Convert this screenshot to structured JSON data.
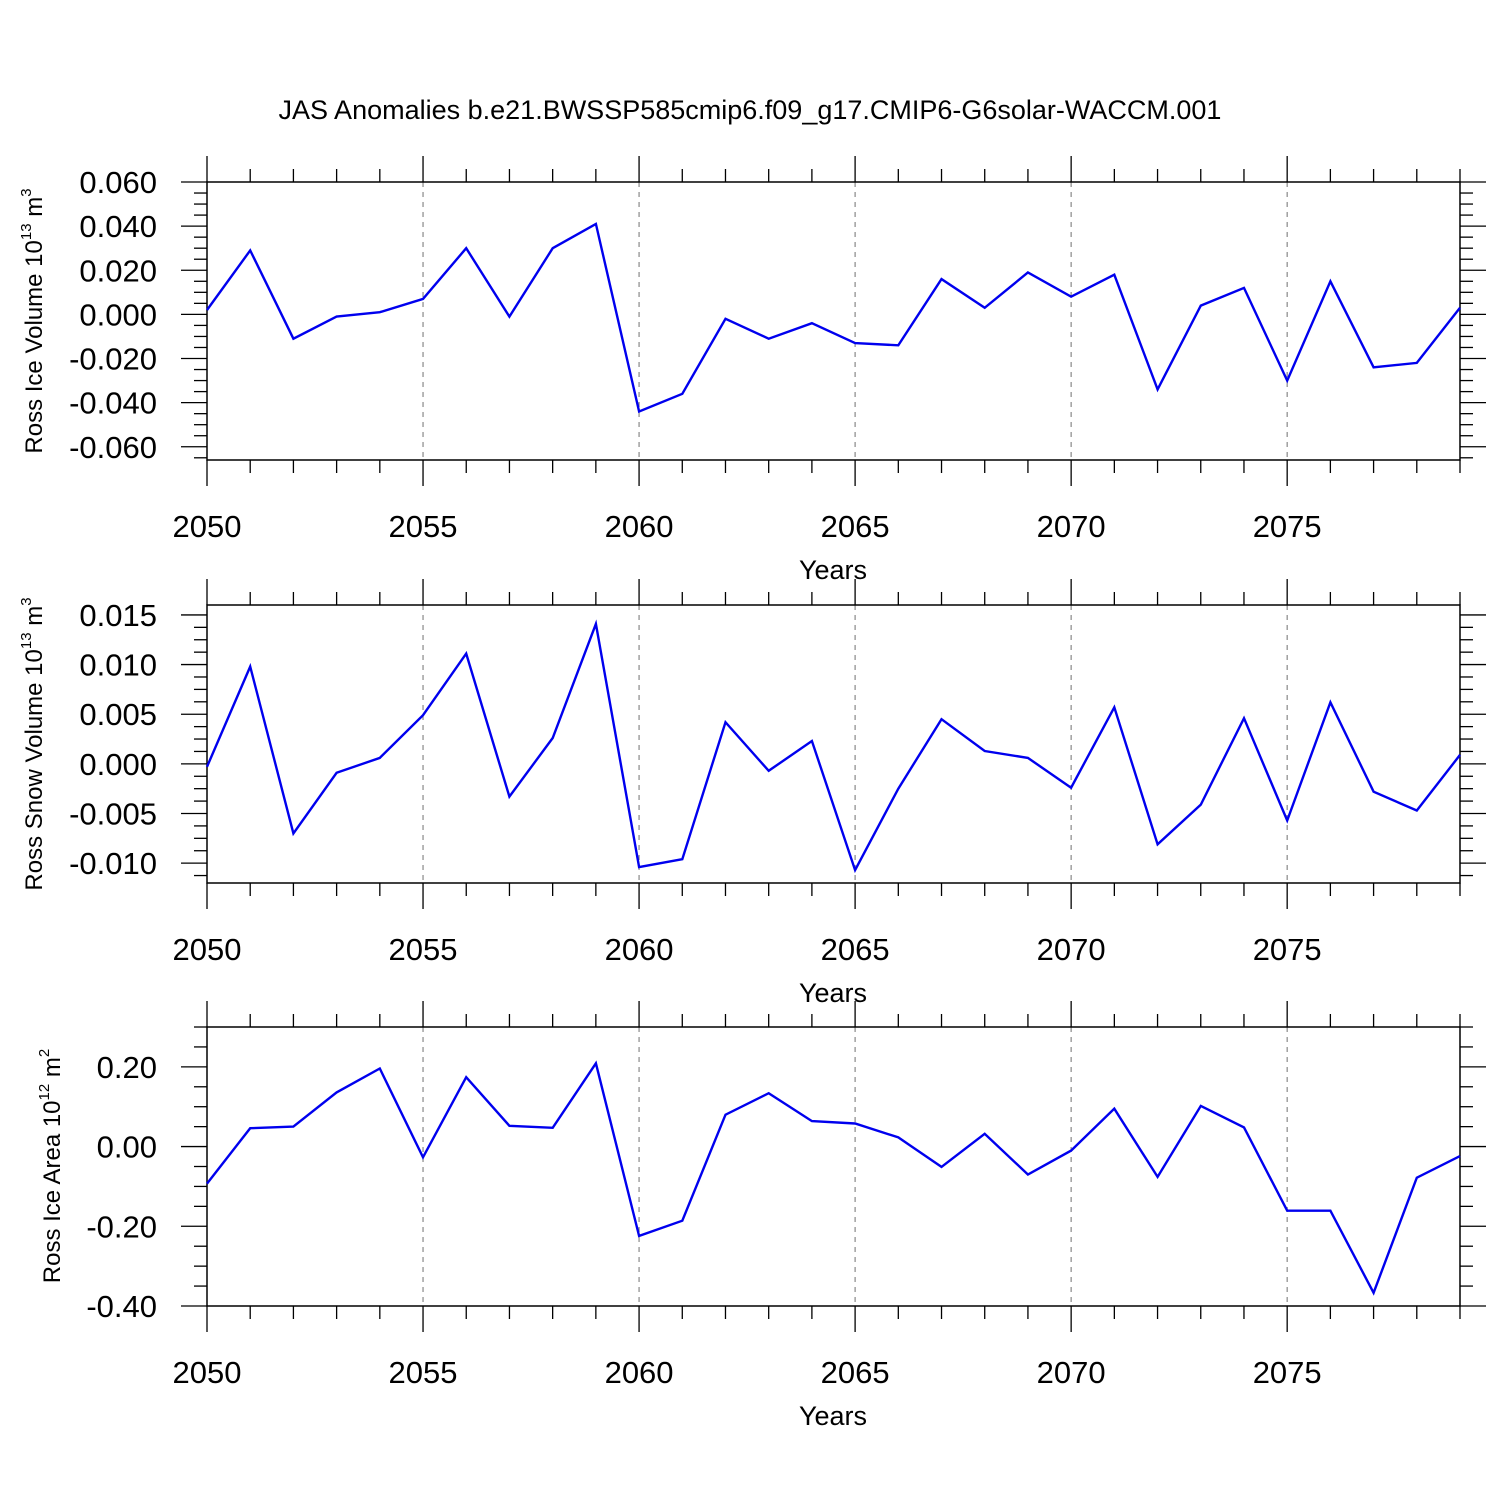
{
  "title": "JAS Anomalies b.e21.BWSSP585cmip6.f09_g17.CMIP6-G6solar-WACCM.001",
  "chart_data": [
    {
      "type": "line",
      "ylabel": "Ross Ice Volume",
      "ylabel_unit_base": "10",
      "ylabel_unit_exp": "13",
      "ylabel_unit_tail": " m",
      "ylabel_unit_tail_exp": "3",
      "xlabel": "Years",
      "xlim": [
        2050,
        2079
      ],
      "ylim": [
        -0.066,
        0.06
      ],
      "xticks": [
        2050,
        2055,
        2060,
        2065,
        2070,
        2075
      ],
      "xtick_labels": [
        "2050",
        "2055",
        "2060",
        "2065",
        "2070",
        "2075"
      ],
      "yticks": [
        -0.06,
        -0.04,
        -0.02,
        0.0,
        0.02,
        0.04,
        0.06
      ],
      "ytick_labels": [
        "-0.060",
        "-0.040",
        "-0.020",
        "0.000",
        "0.020",
        "0.040",
        "0.060"
      ],
      "line_color": "#0000ee",
      "x": [
        2050,
        2051,
        2052,
        2053,
        2054,
        2055,
        2056,
        2057,
        2058,
        2059,
        2060,
        2061,
        2062,
        2063,
        2064,
        2065,
        2066,
        2067,
        2068,
        2069,
        2070,
        2071,
        2072,
        2073,
        2074,
        2075,
        2076,
        2077,
        2078,
        2079
      ],
      "y": [
        0.002,
        0.029,
        -0.011,
        -0.001,
        0.001,
        0.007,
        0.03,
        -0.001,
        0.03,
        0.041,
        -0.044,
        -0.036,
        -0.002,
        -0.011,
        -0.004,
        -0.013,
        -0.014,
        0.016,
        0.003,
        0.019,
        0.008,
        0.018,
        -0.034,
        0.004,
        0.012,
        -0.03,
        0.015,
        -0.024,
        -0.022,
        0.003
      ]
    },
    {
      "type": "line",
      "ylabel": "Ross Snow Volume",
      "ylabel_unit_base": "10",
      "ylabel_unit_exp": "13",
      "ylabel_unit_tail": " m",
      "ylabel_unit_tail_exp": "3",
      "xlabel": "Years",
      "xlim": [
        2050,
        2079
      ],
      "ylim": [
        -0.012,
        0.016
      ],
      "xticks": [
        2050,
        2055,
        2060,
        2065,
        2070,
        2075
      ],
      "xtick_labels": [
        "2050",
        "2055",
        "2060",
        "2065",
        "2070",
        "2075"
      ],
      "yticks": [
        -0.01,
        -0.005,
        0.0,
        0.005,
        0.01,
        0.015
      ],
      "ytick_labels": [
        "-0.010",
        "-0.005",
        "0.000",
        "0.005",
        "0.010",
        "0.015"
      ],
      "line_color": "#0000ee",
      "x": [
        2050,
        2051,
        2052,
        2053,
        2054,
        2055,
        2056,
        2057,
        2058,
        2059,
        2060,
        2061,
        2062,
        2063,
        2064,
        2065,
        2066,
        2067,
        2068,
        2069,
        2070,
        2071,
        2072,
        2073,
        2074,
        2075,
        2076,
        2077,
        2078,
        2079
      ],
      "y": [
        -0.0003,
        0.0098,
        -0.007,
        -0.0009,
        0.0006,
        0.0049,
        0.0111,
        -0.0033,
        0.0026,
        0.0141,
        -0.0104,
        -0.0096,
        0.0042,
        -0.0007,
        0.0023,
        -0.0107,
        -0.0025,
        0.0045,
        0.0013,
        0.0006,
        -0.0024,
        0.0057,
        -0.0081,
        -0.0041,
        0.0046,
        -0.0057,
        0.0062,
        -0.0028,
        -0.0047,
        0.0009
      ]
    },
    {
      "type": "line",
      "ylabel": "Ross Ice Area",
      "ylabel_unit_base": "10",
      "ylabel_unit_exp": "12",
      "ylabel_unit_tail": " m",
      "ylabel_unit_tail_exp": "2",
      "xlabel": "Years",
      "xlim": [
        2050,
        2079
      ],
      "ylim": [
        -0.4,
        0.3
      ],
      "xticks": [
        2050,
        2055,
        2060,
        2065,
        2070,
        2075
      ],
      "xtick_labels": [
        "2050",
        "2055",
        "2060",
        "2065",
        "2070",
        "2075"
      ],
      "yticks": [
        -0.4,
        -0.2,
        0.0,
        0.2
      ],
      "ytick_labels": [
        "-0.40",
        "-0.20",
        "0.00",
        "0.20"
      ],
      "line_color": "#0000ee",
      "x": [
        2050,
        2051,
        2052,
        2053,
        2054,
        2055,
        2056,
        2057,
        2058,
        2059,
        2060,
        2061,
        2062,
        2063,
        2064,
        2065,
        2066,
        2067,
        2068,
        2069,
        2070,
        2071,
        2072,
        2073,
        2074,
        2075,
        2076,
        2077,
        2078,
        2079
      ],
      "y": [
        -0.093,
        0.046,
        0.05,
        0.136,
        0.196,
        -0.027,
        0.174,
        0.052,
        0.047,
        0.209,
        -0.224,
        -0.186,
        0.08,
        0.134,
        0.064,
        0.058,
        0.023,
        -0.051,
        0.032,
        -0.07,
        -0.01,
        0.095,
        -0.076,
        0.102,
        0.048,
        -0.161,
        -0.161,
        -0.367,
        -0.078,
        -0.024
      ]
    }
  ]
}
